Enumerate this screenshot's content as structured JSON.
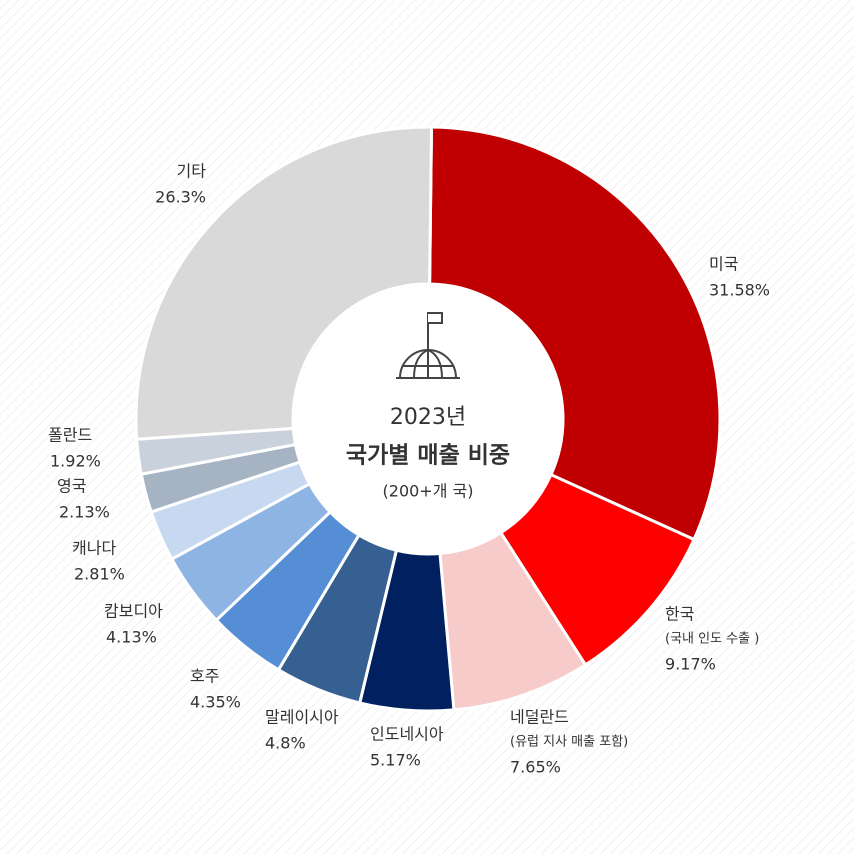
{
  "chart_data": {
    "type": "donut",
    "title": "2023년",
    "subtitle": "국가별 매출 비중",
    "note": "(200+개 국)",
    "categories": [
      "미국",
      "한국",
      "네덜란드",
      "인도네시아",
      "말레이시아",
      "호주",
      "캄보디아",
      "캐나다",
      "영국",
      "폴란드",
      "기타"
    ],
    "sublabels": [
      null,
      "(국내 인도 수출 )",
      "(유럽 지사 매출 포함)",
      null,
      null,
      null,
      null,
      null,
      null,
      null,
      null
    ],
    "values": [
      31.58,
      9.17,
      7.65,
      5.17,
      4.8,
      4.35,
      4.13,
      2.81,
      2.13,
      1.92,
      26.3
    ],
    "value_labels": [
      "31.58%",
      "9.17%",
      "7.65%",
      "5.17%",
      "4.8%",
      "4.35%",
      "4.13%",
      "2.81%",
      "2.13%",
      "1.92%",
      "26.3%"
    ],
    "colors": [
      "#c00000",
      "#ff0000",
      "#f8cbcb",
      "#002060",
      "#376092",
      "#558ed5",
      "#8eb4e3",
      "#c6d9f1",
      "#a5b3c3",
      "#c9d1dc",
      "#d9d9d9"
    ]
  }
}
